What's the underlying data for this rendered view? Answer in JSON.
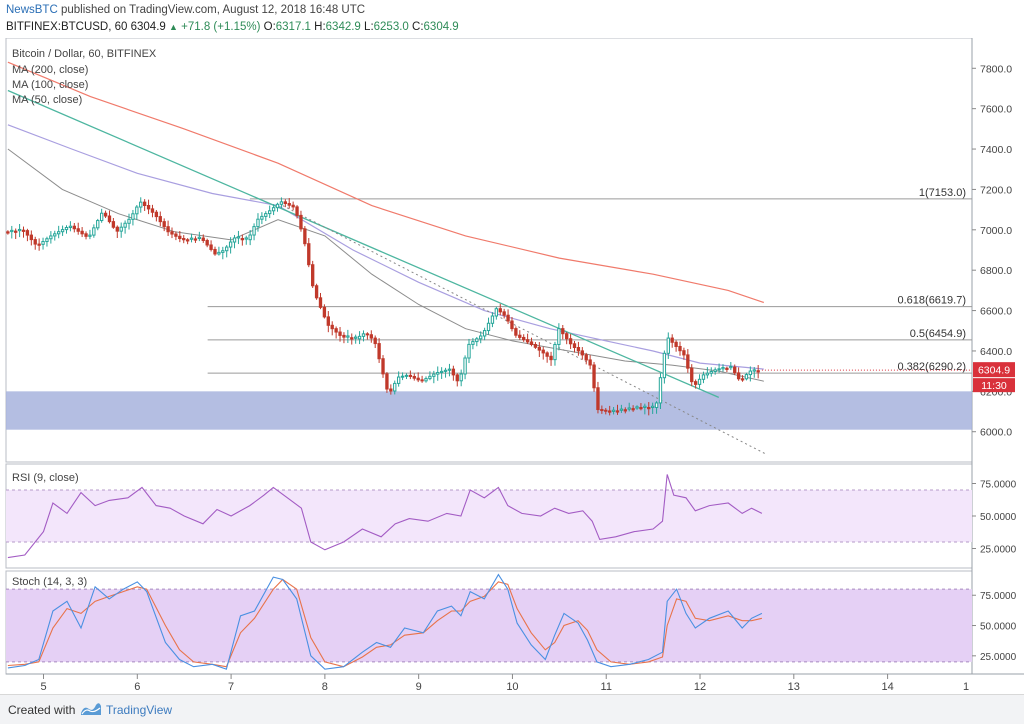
{
  "header": {
    "brand": "NewsBTC",
    "published_text": "published on TradingView.com, August 12, 2018 16:48 UTC",
    "symbol": "BITFINEX:BTCUSD, 60",
    "last": "6304.9",
    "change": "+71.8 (+1.15%)",
    "o_label": "O:",
    "o": "6317.1",
    "h_label": "H:",
    "h": "6342.9",
    "l_label": "L:",
    "l": "6253.0",
    "c_label": "C:",
    "c": "6304.9"
  },
  "footer": {
    "created_with": "Created with",
    "tradingview": "TradingView"
  },
  "colors": {
    "up": "#26a69a",
    "down": "#c0392b",
    "candle_body_up": "#ffffff",
    "ma200": "#f07a6b",
    "ma100": "#a99fe0",
    "ma50": "#8c8c8c",
    "trendline": "#4db6a0",
    "support_zone": "#a7b3dd",
    "price_tag": "#d9313b",
    "rsi_band": "#f3e6fb",
    "stoch_band": "#e5d0f5",
    "stoch_k": "#4a90e2",
    "stoch_d": "#e8734a"
  },
  "chart_data": [
    {
      "type": "candlestick",
      "title": "Bitcoin / Dollar, 60, BITFINEX",
      "legend": [
        "MA (200, close)",
        "MA (100, close)",
        "MA (50, close)"
      ],
      "ylim": [
        5850,
        7950
      ],
      "yticks": [
        6000,
        6200,
        6400,
        6600,
        6800,
        7000,
        7200,
        7400,
        7600,
        7800
      ],
      "yticklabels": [
        "6000.0",
        "6200.0",
        "6400.0",
        "6600.0",
        "6800.0",
        "7000.0",
        "7200.0",
        "7400.0",
        "7600.0",
        "7800.0"
      ],
      "xlim": [
        4.6,
        14.9
      ],
      "xticks": [
        5,
        6,
        7,
        8,
        9,
        10,
        11,
        12,
        13,
        14
      ],
      "xticklabels": [
        "5",
        "6",
        "7",
        "8",
        "9",
        "10",
        "11",
        "12",
        "13",
        "14"
      ],
      "last_date_label": "1",
      "price_path": [
        [
          4.62,
          6990
        ],
        [
          4.8,
          7000
        ],
        [
          4.95,
          6920
        ],
        [
          5.1,
          6970
        ],
        [
          5.3,
          7020
        ],
        [
          5.5,
          6960
        ],
        [
          5.65,
          7090
        ],
        [
          5.8,
          6990
        ],
        [
          5.95,
          7060
        ],
        [
          6.05,
          7140
        ],
        [
          6.2,
          7080
        ],
        [
          6.35,
          6990
        ],
        [
          6.5,
          6950
        ],
        [
          6.7,
          6960
        ],
        [
          6.85,
          6880
        ],
        [
          6.95,
          6900
        ],
        [
          7.05,
          6960
        ],
        [
          7.2,
          6950
        ],
        [
          7.3,
          7050
        ],
        [
          7.45,
          7100
        ],
        [
          7.55,
          7140
        ],
        [
          7.7,
          7110
        ],
        [
          7.8,
          6950
        ],
        [
          7.9,
          6700
        ],
        [
          8.05,
          6530
        ],
        [
          8.2,
          6470
        ],
        [
          8.35,
          6460
        ],
        [
          8.45,
          6490
        ],
        [
          8.55,
          6450
        ],
        [
          8.7,
          6180
        ],
        [
          8.8,
          6270
        ],
        [
          8.9,
          6280
        ],
        [
          9.05,
          6250
        ],
        [
          9.2,
          6290
        ],
        [
          9.35,
          6310
        ],
        [
          9.45,
          6240
        ],
        [
          9.55,
          6430
        ],
        [
          9.7,
          6480
        ],
        [
          9.85,
          6610
        ],
        [
          9.95,
          6570
        ],
        [
          10.05,
          6480
        ],
        [
          10.2,
          6440
        ],
        [
          10.35,
          6390
        ],
        [
          10.45,
          6350
        ],
        [
          10.5,
          6520
        ],
        [
          10.65,
          6430
        ],
        [
          10.75,
          6390
        ],
        [
          10.85,
          6330
        ],
        [
          10.93,
          6110
        ],
        [
          11.05,
          6100
        ],
        [
          11.2,
          6110
        ],
        [
          11.35,
          6120
        ],
        [
          11.55,
          6120
        ],
        [
          11.62,
          6330
        ],
        [
          11.67,
          6470
        ],
        [
          11.75,
          6430
        ],
        [
          11.85,
          6380
        ],
        [
          11.95,
          6220
        ],
        [
          12.05,
          6280
        ],
        [
          12.2,
          6310
        ],
        [
          12.35,
          6320
        ],
        [
          12.45,
          6250
        ],
        [
          12.55,
          6300
        ],
        [
          12.66,
          6305
        ]
      ],
      "ma200": [
        [
          4.62,
          7830
        ],
        [
          5.5,
          7660
        ],
        [
          6.5,
          7500
        ],
        [
          7.5,
          7330
        ],
        [
          8.5,
          7120
        ],
        [
          9.5,
          6970
        ],
        [
          10.5,
          6860
        ],
        [
          11.5,
          6780
        ],
        [
          12.3,
          6700
        ],
        [
          12.68,
          6640
        ]
      ],
      "ma100": [
        [
          4.62,
          7520
        ],
        [
          5.3,
          7400
        ],
        [
          6.0,
          7280
        ],
        [
          6.8,
          7180
        ],
        [
          7.5,
          7120
        ],
        [
          8.3,
          6900
        ],
        [
          9.0,
          6740
        ],
        [
          9.7,
          6600
        ],
        [
          10.4,
          6510
        ],
        [
          11.0,
          6450
        ],
        [
          11.5,
          6400
        ],
        [
          12.0,
          6340
        ],
        [
          12.68,
          6310
        ]
      ],
      "ma50": [
        [
          4.62,
          7400
        ],
        [
          5.2,
          7200
        ],
        [
          5.8,
          7080
        ],
        [
          6.4,
          6990
        ],
        [
          7.0,
          6950
        ],
        [
          7.5,
          7050
        ],
        [
          8.0,
          6970
        ],
        [
          8.5,
          6780
        ],
        [
          9.0,
          6630
        ],
        [
          9.5,
          6510
        ],
        [
          10.0,
          6450
        ],
        [
          10.6,
          6400
        ],
        [
          11.2,
          6350
        ],
        [
          11.7,
          6330
        ],
        [
          12.2,
          6300
        ],
        [
          12.68,
          6250
        ]
      ],
      "trendline": {
        "x1": 4.62,
        "y1": 7690,
        "x2": 12.2,
        "y2": 6170
      },
      "dotted_trendline": {
        "x1": 7.55,
        "y1": 7120,
        "x2": 12.7,
        "y2": 5890
      },
      "fib_levels": [
        {
          "label": "1(7153.0)",
          "value": 7153.0,
          "x1": 7.2
        },
        {
          "label": "0.618(6619.7)",
          "value": 6619.7,
          "x1": 6.75
        },
        {
          "label": "0.5(6454.9)",
          "value": 6454.9,
          "x1": 6.75
        },
        {
          "label": "0.382(6290.2)",
          "value": 6290.2,
          "x1": 6.75
        }
      ],
      "support_zone": [
        6010,
        6200
      ],
      "last_price_label": "6304.9",
      "countdown_label": "11:30"
    },
    {
      "type": "line",
      "title": "RSI (9, close)",
      "ylim": [
        10,
        90
      ],
      "band": [
        30,
        70
      ],
      "yticks": [
        25,
        50,
        75
      ],
      "yticklabels": [
        "25.0000",
        "50.0000",
        "75.0000"
      ],
      "values": [
        [
          4.62,
          18
        ],
        [
          4.8,
          20
        ],
        [
          5.0,
          38
        ],
        [
          5.1,
          60
        ],
        [
          5.25,
          52
        ],
        [
          5.4,
          68
        ],
        [
          5.55,
          58
        ],
        [
          5.7,
          62
        ],
        [
          5.9,
          64
        ],
        [
          6.05,
          72
        ],
        [
          6.2,
          58
        ],
        [
          6.35,
          56
        ],
        [
          6.5,
          50
        ],
        [
          6.7,
          44
        ],
        [
          6.85,
          55
        ],
        [
          7.0,
          50
        ],
        [
          7.2,
          58
        ],
        [
          7.35,
          66
        ],
        [
          7.45,
          72
        ],
        [
          7.6,
          64
        ],
        [
          7.75,
          56
        ],
        [
          7.85,
          30
        ],
        [
          8.0,
          24
        ],
        [
          8.2,
          30
        ],
        [
          8.4,
          40
        ],
        [
          8.6,
          34
        ],
        [
          8.75,
          44
        ],
        [
          8.9,
          48
        ],
        [
          9.1,
          46
        ],
        [
          9.3,
          52
        ],
        [
          9.45,
          50
        ],
        [
          9.55,
          70
        ],
        [
          9.7,
          64
        ],
        [
          9.85,
          72
        ],
        [
          9.95,
          58
        ],
        [
          10.1,
          52
        ],
        [
          10.3,
          50
        ],
        [
          10.45,
          56
        ],
        [
          10.6,
          52
        ],
        [
          10.75,
          54
        ],
        [
          10.85,
          46
        ],
        [
          10.93,
          32
        ],
        [
          11.1,
          34
        ],
        [
          11.3,
          38
        ],
        [
          11.5,
          40
        ],
        [
          11.6,
          46
        ],
        [
          11.65,
          82
        ],
        [
          11.72,
          66
        ],
        [
          11.85,
          64
        ],
        [
          11.95,
          54
        ],
        [
          12.1,
          58
        ],
        [
          12.3,
          60
        ],
        [
          12.45,
          52
        ],
        [
          12.55,
          56
        ],
        [
          12.66,
          52
        ]
      ]
    },
    {
      "type": "line",
      "title": "Stoch (14, 3, 3)",
      "ylim": [
        10,
        95
      ],
      "band": [
        20,
        80
      ],
      "yticks": [
        25,
        50,
        75
      ],
      "yticklabels": [
        "25.0000",
        "50.0000",
        "75.0000"
      ],
      "series": [
        {
          "name": "%K",
          "values": [
            [
              4.62,
              15
            ],
            [
              4.8,
              17
            ],
            [
              4.95,
              22
            ],
            [
              5.1,
              62
            ],
            [
              5.25,
              70
            ],
            [
              5.4,
              48
            ],
            [
              5.55,
              82
            ],
            [
              5.7,
              72
            ],
            [
              5.85,
              80
            ],
            [
              6.0,
              86
            ],
            [
              6.1,
              78
            ],
            [
              6.3,
              36
            ],
            [
              6.45,
              22
            ],
            [
              6.6,
              16
            ],
            [
              6.8,
              18
            ],
            [
              6.95,
              14
            ],
            [
              7.1,
              58
            ],
            [
              7.25,
              62
            ],
            [
              7.45,
              90
            ],
            [
              7.55,
              88
            ],
            [
              7.7,
              72
            ],
            [
              7.85,
              25
            ],
            [
              8.0,
              14
            ],
            [
              8.2,
              16
            ],
            [
              8.4,
              28
            ],
            [
              8.55,
              36
            ],
            [
              8.7,
              32
            ],
            [
              8.85,
              48
            ],
            [
              9.05,
              44
            ],
            [
              9.2,
              62
            ],
            [
              9.35,
              66
            ],
            [
              9.45,
              58
            ],
            [
              9.55,
              78
            ],
            [
              9.7,
              72
            ],
            [
              9.85,
              92
            ],
            [
              9.95,
              80
            ],
            [
              10.05,
              52
            ],
            [
              10.2,
              34
            ],
            [
              10.35,
              22
            ],
            [
              10.45,
              42
            ],
            [
              10.55,
              60
            ],
            [
              10.7,
              52
            ],
            [
              10.8,
              38
            ],
            [
              10.9,
              20
            ],
            [
              11.05,
              16
            ],
            [
              11.25,
              18
            ],
            [
              11.45,
              22
            ],
            [
              11.6,
              28
            ],
            [
              11.65,
              70
            ],
            [
              11.75,
              80
            ],
            [
              11.85,
              60
            ],
            [
              11.95,
              48
            ],
            [
              12.1,
              56
            ],
            [
              12.3,
              62
            ],
            [
              12.45,
              48
            ],
            [
              12.55,
              56
            ],
            [
              12.66,
              60
            ]
          ]
        },
        {
          "name": "%D",
          "values": [
            [
              4.62,
              17
            ],
            [
              4.8,
              18
            ],
            [
              4.95,
              20
            ],
            [
              5.1,
              48
            ],
            [
              5.25,
              64
            ],
            [
              5.4,
              60
            ],
            [
              5.55,
              70
            ],
            [
              5.7,
              74
            ],
            [
              5.85,
              78
            ],
            [
              6.0,
              82
            ],
            [
              6.1,
              80
            ],
            [
              6.3,
              50
            ],
            [
              6.45,
              30
            ],
            [
              6.6,
              20
            ],
            [
              6.8,
              18
            ],
            [
              6.95,
              16
            ],
            [
              7.1,
              44
            ],
            [
              7.25,
              56
            ],
            [
              7.45,
              80
            ],
            [
              7.55,
              88
            ],
            [
              7.7,
              80
            ],
            [
              7.85,
              40
            ],
            [
              8.0,
              20
            ],
            [
              8.2,
              16
            ],
            [
              8.4,
              24
            ],
            [
              8.55,
              32
            ],
            [
              8.7,
              34
            ],
            [
              8.85,
              42
            ],
            [
              9.05,
              44
            ],
            [
              9.2,
              54
            ],
            [
              9.35,
              62
            ],
            [
              9.45,
              62
            ],
            [
              9.55,
              70
            ],
            [
              9.7,
              74
            ],
            [
              9.85,
              86
            ],
            [
              9.95,
              84
            ],
            [
              10.05,
              64
            ],
            [
              10.2,
              44
            ],
            [
              10.35,
              30
            ],
            [
              10.45,
              36
            ],
            [
              10.55,
              50
            ],
            [
              10.7,
              54
            ],
            [
              10.8,
              46
            ],
            [
              10.9,
              30
            ],
            [
              11.05,
              20
            ],
            [
              11.25,
              18
            ],
            [
              11.45,
              20
            ],
            [
              11.6,
              24
            ],
            [
              11.65,
              50
            ],
            [
              11.75,
              72
            ],
            [
              11.85,
              70
            ],
            [
              11.95,
              56
            ],
            [
              12.1,
              54
            ],
            [
              12.3,
              58
            ],
            [
              12.45,
              54
            ],
            [
              12.55,
              54
            ],
            [
              12.66,
              56
            ]
          ]
        }
      ]
    }
  ]
}
